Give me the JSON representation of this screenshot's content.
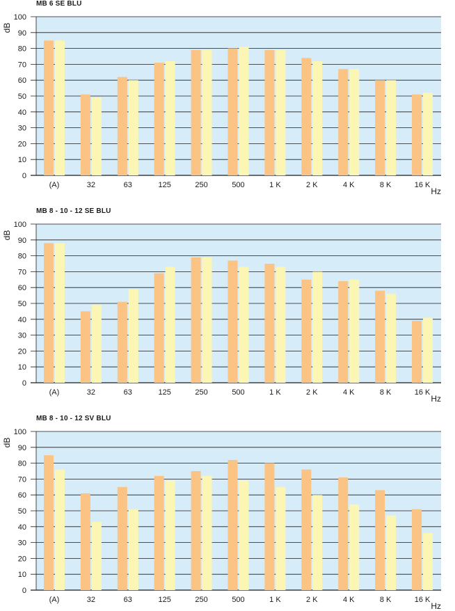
{
  "chart_data": [
    {
      "type": "bar",
      "title": "MB 6 SE BLU",
      "ylabel": "dB",
      "xlabel": "Hz",
      "ylim": [
        0,
        100
      ],
      "yticks": [
        0,
        10,
        20,
        30,
        40,
        50,
        60,
        70,
        80,
        90,
        100
      ],
      "grid": true,
      "categories": [
        "(A)",
        "32",
        "63",
        "125",
        "250",
        "500",
        "1 K",
        "2 K",
        "4 K",
        "8 K",
        "16 K"
      ],
      "series": [
        {
          "values": [
            85,
            51,
            62,
            71,
            79,
            80,
            79,
            74,
            67,
            60,
            51
          ]
        },
        {
          "values": [
            85,
            49,
            60,
            72,
            79,
            81,
            79,
            72,
            67,
            60,
            52
          ]
        }
      ]
    },
    {
      "type": "bar",
      "title": "MB 8 - 10 - 12 SE BLU",
      "ylabel": "dB",
      "xlabel": "Hz",
      "ylim": [
        0,
        100
      ],
      "yticks": [
        0,
        10,
        20,
        30,
        40,
        50,
        60,
        70,
        80,
        90,
        100
      ],
      "grid": true,
      "categories": [
        "(A)",
        "32",
        "63",
        "125",
        "250",
        "500",
        "1 K",
        "2 K",
        "4 K",
        "8 K",
        "16 K"
      ],
      "series": [
        {
          "values": [
            88,
            45,
            51,
            69,
            79,
            77,
            75,
            65,
            64,
            58,
            39
          ]
        },
        {
          "values": [
            88,
            49,
            59,
            73,
            79,
            73,
            73,
            70,
            65,
            56,
            41
          ]
        }
      ]
    },
    {
      "type": "bar",
      "title": "MB 8 - 10 - 12 SV BLU",
      "ylabel": "dB",
      "xlabel": "Hz",
      "ylim": [
        0,
        100
      ],
      "yticks": [
        0,
        10,
        20,
        30,
        40,
        50,
        60,
        70,
        80,
        90,
        100
      ],
      "grid": true,
      "categories": [
        "(A)",
        "32",
        "63",
        "125",
        "250",
        "500",
        "1 K",
        "2 K",
        "4 K",
        "8 K",
        "16 K"
      ],
      "series": [
        {
          "values": [
            85,
            61,
            65,
            72,
            75,
            82,
            80,
            76,
            71,
            63,
            51
          ]
        },
        {
          "values": [
            76,
            43,
            51,
            69,
            72,
            69,
            65,
            60,
            54,
            47,
            36
          ]
        }
      ]
    }
  ],
  "colors": {
    "plot_background": "#d6ecf8",
    "series_1": "#fbc384",
    "series_2": "#fcf6b4",
    "gridline": "#1a1a1a"
  }
}
